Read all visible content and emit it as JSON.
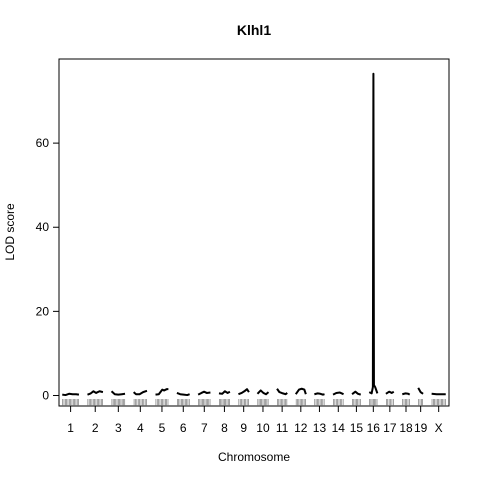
{
  "chart_data": {
    "type": "line",
    "title": "Klhl1",
    "xlabel": "Chromosome",
    "ylabel": "LOD score",
    "ylim": [
      -2.5,
      80
    ],
    "yticks": [
      0,
      20,
      40,
      60
    ],
    "grid": false,
    "legend": "none",
    "line_color": "#000000",
    "chromosomes": [
      {
        "name": "1",
        "length": 195,
        "lod": [
          [
            3,
            0.2
          ],
          [
            40,
            0.1
          ],
          [
            80,
            0.4
          ],
          [
            120,
            0.3
          ],
          [
            160,
            0.3
          ],
          [
            192,
            0.2
          ]
        ]
      },
      {
        "name": "2",
        "length": 182,
        "lod": [
          [
            3,
            0.2
          ],
          [
            40,
            0.5
          ],
          [
            70,
            1.0
          ],
          [
            100,
            0.6
          ],
          [
            140,
            1.0
          ],
          [
            178,
            0.8
          ]
        ]
      },
      {
        "name": "3",
        "length": 160,
        "lod": [
          [
            3,
            1.0
          ],
          [
            40,
            0.3
          ],
          [
            80,
            0.2
          ],
          [
            120,
            0.3
          ],
          [
            156,
            0.4
          ]
        ]
      },
      {
        "name": "4",
        "length": 157,
        "lod": [
          [
            3,
            0.8
          ],
          [
            30,
            0.3
          ],
          [
            70,
            0.3
          ],
          [
            110,
            0.8
          ],
          [
            154,
            1.1
          ]
        ]
      },
      {
        "name": "5",
        "length": 152,
        "lod": [
          [
            3,
            0.2
          ],
          [
            40,
            0.3
          ],
          [
            80,
            1.4
          ],
          [
            100,
            1.2
          ],
          [
            130,
            1.5
          ],
          [
            149,
            1.5
          ]
        ]
      },
      {
        "name": "6",
        "length": 150,
        "lod": [
          [
            3,
            0.6
          ],
          [
            40,
            0.3
          ],
          [
            80,
            0.2
          ],
          [
            120,
            0.1
          ],
          [
            147,
            0.3
          ]
        ]
      },
      {
        "name": "7",
        "length": 145,
        "lod": [
          [
            3,
            0.2
          ],
          [
            40,
            0.6
          ],
          [
            70,
            0.9
          ],
          [
            100,
            0.6
          ],
          [
            142,
            0.7
          ]
        ]
      },
      {
        "name": "8",
        "length": 130,
        "lod": [
          [
            3,
            0.5
          ],
          [
            40,
            0.4
          ],
          [
            70,
            1.0
          ],
          [
            100,
            0.6
          ],
          [
            127,
            0.9
          ]
        ]
      },
      {
        "name": "9",
        "length": 125,
        "lod": [
          [
            3,
            0.3
          ],
          [
            40,
            0.6
          ],
          [
            70,
            1.0
          ],
          [
            100,
            1.5
          ],
          [
            122,
            0.8
          ]
        ]
      },
      {
        "name": "10",
        "length": 131,
        "lod": [
          [
            3,
            0.4
          ],
          [
            40,
            1.2
          ],
          [
            70,
            0.6
          ],
          [
            100,
            0.3
          ],
          [
            128,
            0.8
          ]
        ]
      },
      {
        "name": "11",
        "length": 122,
        "lod": [
          [
            3,
            1.6
          ],
          [
            30,
            0.8
          ],
          [
            70,
            0.5
          ],
          [
            100,
            0.3
          ],
          [
            119,
            0.6
          ]
        ]
      },
      {
        "name": "12",
        "length": 120,
        "lod": [
          [
            3,
            0.3
          ],
          [
            40,
            1.4
          ],
          [
            70,
            1.6
          ],
          [
            100,
            1.4
          ],
          [
            117,
            0.3
          ]
        ]
      },
      {
        "name": "13",
        "length": 121,
        "lod": [
          [
            3,
            0.3
          ],
          [
            40,
            0.5
          ],
          [
            70,
            0.4
          ],
          [
            100,
            0.2
          ],
          [
            118,
            0.3
          ]
        ]
      },
      {
        "name": "14",
        "length": 125,
        "lod": [
          [
            3,
            0.2
          ],
          [
            40,
            0.6
          ],
          [
            80,
            0.7
          ],
          [
            122,
            0.3
          ]
        ]
      },
      {
        "name": "15",
        "length": 104,
        "lod": [
          [
            3,
            0.3
          ],
          [
            40,
            0.9
          ],
          [
            70,
            0.4
          ],
          [
            101,
            0.2
          ]
        ]
      },
      {
        "name": "16",
        "length": 98,
        "lod": [
          [
            3,
            0.8
          ],
          [
            30,
            0.5
          ],
          [
            44,
            2.0
          ],
          [
            50,
            76.5
          ],
          [
            56,
            2.5
          ],
          [
            70,
            2.0
          ],
          [
            95,
            0.5
          ]
        ]
      },
      {
        "name": "17",
        "length": 95,
        "lod": [
          [
            3,
            0.4
          ],
          [
            40,
            0.9
          ],
          [
            70,
            0.6
          ],
          [
            92,
            0.9
          ]
        ]
      },
      {
        "name": "18",
        "length": 90,
        "lod": [
          [
            3,
            0.3
          ],
          [
            40,
            0.5
          ],
          [
            70,
            0.4
          ],
          [
            87,
            0.2
          ]
        ]
      },
      {
        "name": "19",
        "length": 61,
        "lod": [
          [
            3,
            1.8
          ],
          [
            30,
            0.8
          ],
          [
            58,
            0.4
          ]
        ]
      },
      {
        "name": "X",
        "length": 166,
        "lod": [
          [
            3,
            0.4
          ],
          [
            60,
            0.3
          ],
          [
            120,
            0.3
          ],
          [
            163,
            0.3
          ]
        ]
      }
    ]
  }
}
